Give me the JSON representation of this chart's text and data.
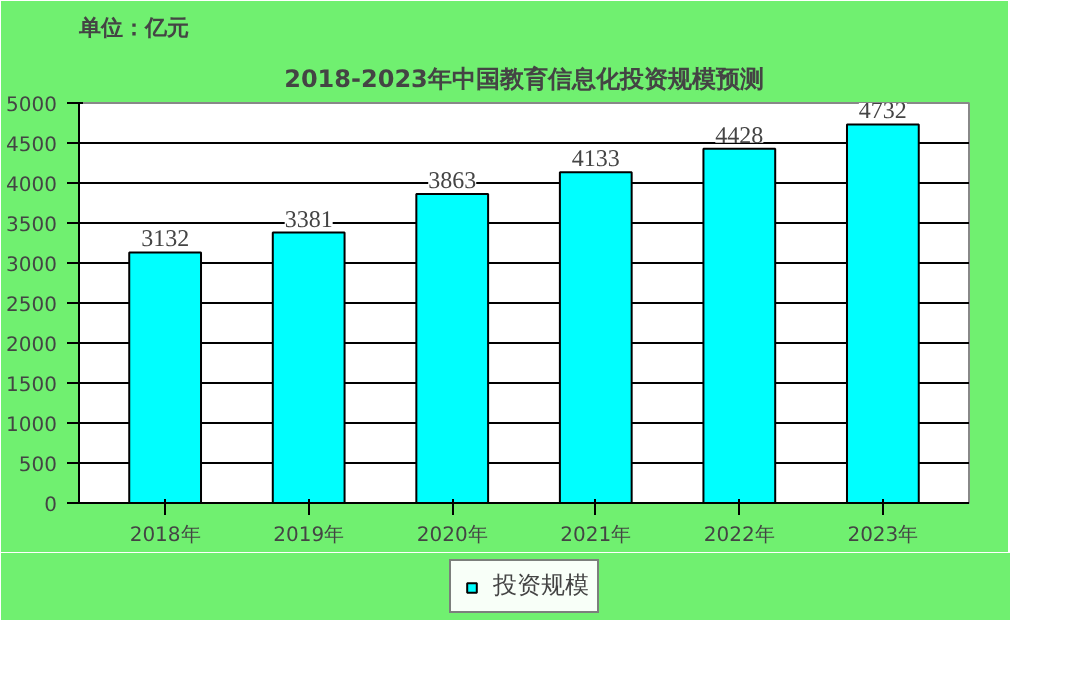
{
  "chart_data": {
    "type": "bar",
    "title": "2018-2023年中国教育信息化投资规模预测",
    "ylabel": "单位：亿元",
    "categories": [
      "2018年",
      "2019年",
      "2020年",
      "2021年",
      "2022年",
      "2023年"
    ],
    "series": [
      {
        "name": "投资规模",
        "color": "#00ffff",
        "values": [
          3132,
          3381,
          3863,
          4133,
          4428,
          4732
        ]
      }
    ],
    "ylim": [
      0,
      5000
    ],
    "yticks": [
      0,
      500,
      1000,
      1500,
      2000,
      2500,
      3000,
      3500,
      4000,
      4500,
      5000
    ],
    "grid": "y",
    "legend": "bottom",
    "data_labels": true
  }
}
